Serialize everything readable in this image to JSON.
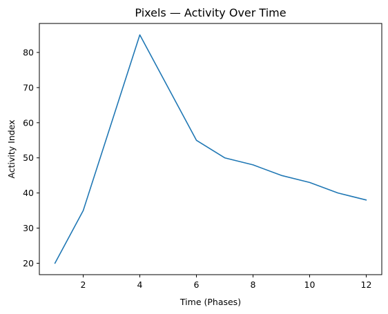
{
  "chart_data": {
    "type": "line",
    "title": "Pixels — Activity Over Time",
    "xlabel": "Time (Phases)",
    "ylabel": "Activity Index",
    "xlim": [
      0.45,
      12.55
    ],
    "ylim": [
      16.75,
      88.25
    ],
    "xticks": [
      2,
      4,
      6,
      8,
      10,
      12
    ],
    "yticks": [
      20,
      30,
      40,
      50,
      60,
      70,
      80
    ],
    "grid": false,
    "legend": "none",
    "series": [
      {
        "color": "#1f77b4",
        "x": [
          1,
          2,
          3,
          4,
          5,
          6,
          7,
          8,
          9,
          10,
          11,
          12
        ],
        "y": [
          20,
          35,
          60,
          85,
          70,
          55,
          50,
          48,
          45,
          43,
          40,
          38
        ]
      }
    ]
  }
}
